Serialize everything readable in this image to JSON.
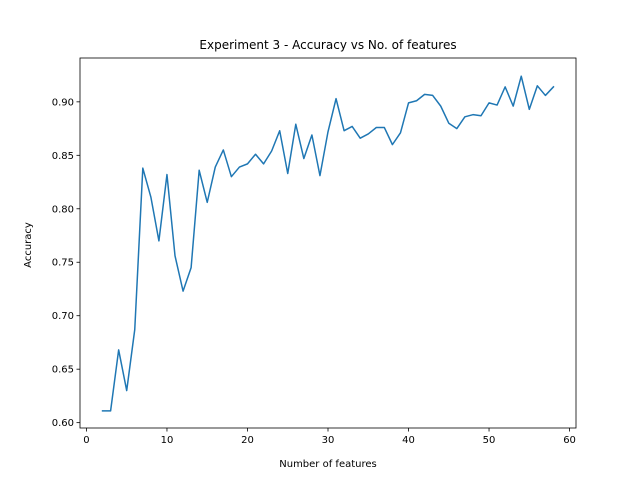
{
  "chart_data": {
    "type": "line",
    "title": "Experiment 3 - Accuracy vs No. of features",
    "xlabel": "Number of features",
    "ylabel": "Accuracy",
    "xlim": [
      -0.8,
      60.8
    ],
    "ylim": [
      0.595,
      0.941
    ],
    "xticks": [
      0,
      10,
      20,
      30,
      40,
      50,
      60
    ],
    "xtick_labels": [
      "0",
      "10",
      "20",
      "30",
      "40",
      "50",
      "60"
    ],
    "yticks": [
      0.6,
      0.65,
      0.7,
      0.75,
      0.8,
      0.85,
      0.9
    ],
    "ytick_labels": [
      "0.60",
      "0.65",
      "0.70",
      "0.75",
      "0.80",
      "0.85",
      "0.90"
    ],
    "grid": false,
    "series": [
      {
        "color": "#1f77b4",
        "x": [
          2,
          3,
          4,
          5,
          6,
          7,
          8,
          9,
          10,
          11,
          12,
          13,
          14,
          15,
          16,
          17,
          18,
          19,
          20,
          21,
          22,
          23,
          24,
          25,
          26,
          27,
          28,
          29,
          30,
          31,
          32,
          33,
          34,
          35,
          36,
          37,
          38,
          39,
          40,
          41,
          42,
          43,
          44,
          45,
          46,
          47,
          48,
          49,
          50,
          51,
          52,
          53,
          54,
          55,
          56,
          57,
          58
        ],
        "y": [
          0.611,
          0.611,
          0.668,
          0.63,
          0.687,
          0.838,
          0.811,
          0.77,
          0.832,
          0.756,
          0.723,
          0.745,
          0.836,
          0.806,
          0.839,
          0.855,
          0.83,
          0.839,
          0.842,
          0.851,
          0.842,
          0.854,
          0.873,
          0.833,
          0.879,
          0.847,
          0.869,
          0.831,
          0.872,
          0.903,
          0.873,
          0.877,
          0.866,
          0.87,
          0.876,
          0.876,
          0.86,
          0.871,
          0.899,
          0.901,
          0.907,
          0.906,
          0.896,
          0.88,
          0.875,
          0.886,
          0.888,
          0.887,
          0.899,
          0.897,
          0.914,
          0.896,
          0.924,
          0.893,
          0.915,
          0.906,
          0.914
        ]
      }
    ]
  }
}
